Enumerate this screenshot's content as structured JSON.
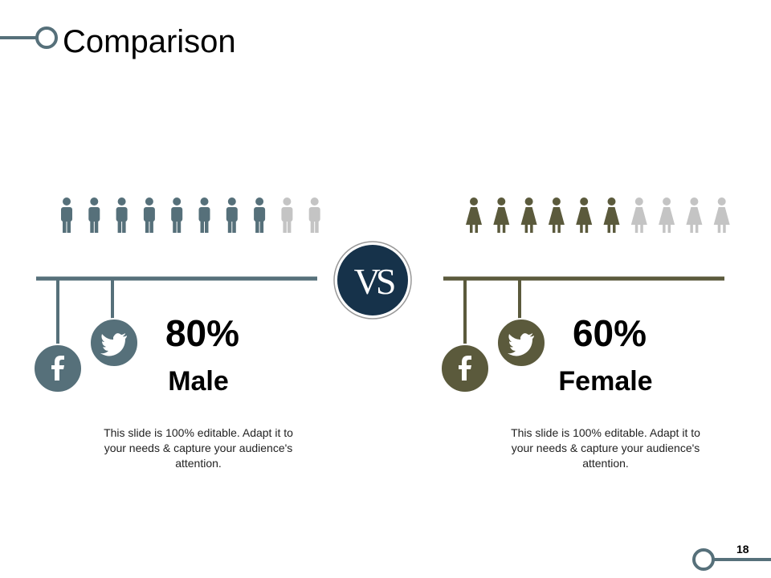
{
  "header": {
    "title": "Comparison"
  },
  "vs": "VS",
  "panels": [
    {
      "value": 80,
      "value_label": "80%",
      "label": "Male",
      "description": "This slide is 100% editable. Adapt it to your needs & capture your audience's attention.",
      "color": "#56707a"
    },
    {
      "value": 60,
      "value_label": "60%",
      "label": "Female",
      "description": "This slide is 100% editable. Adapt it to your needs & capture your audience's attention.",
      "color": "#5b5a3c"
    }
  ],
  "page_number": "18"
}
